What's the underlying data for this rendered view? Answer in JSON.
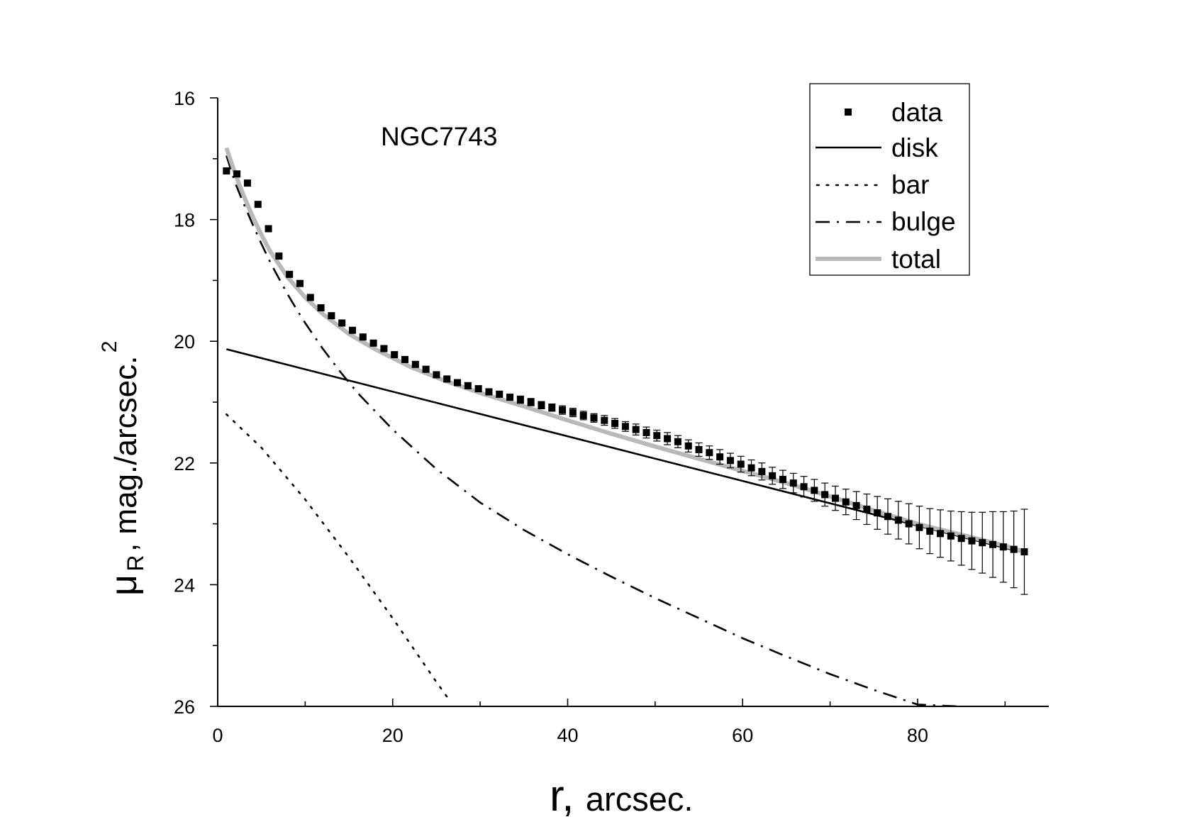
{
  "chart_data": {
    "type": "scatter",
    "title": "",
    "annotation": "NGC7743",
    "xlabel": {
      "main": "r,",
      "rest": "arcsec."
    },
    "ylabel": {
      "mu": "μ",
      "sub": "R",
      "text": ", mag./arcsec.",
      "sup": "2"
    },
    "xlim": [
      0,
      95
    ],
    "ylim": [
      26,
      16
    ],
    "y_inverted": true,
    "x_ticks": [
      0,
      20,
      40,
      60,
      80
    ],
    "y_ticks": [
      16,
      18,
      20,
      22,
      24,
      26
    ],
    "x_minor_step": 10,
    "y_minor_step": 1,
    "grid": false,
    "legend_position": "top-right",
    "legend": [
      {
        "name": "data",
        "style": "square-marker"
      },
      {
        "name": "disk",
        "style": "solid"
      },
      {
        "name": "bar",
        "style": "dotted"
      },
      {
        "name": "bulge",
        "style": "dash-dot"
      },
      {
        "name": "total",
        "style": "solid-gray"
      }
    ],
    "colors": {
      "data": "#000000",
      "disk": "#000000",
      "bar": "#000000",
      "bulge": "#000000",
      "total": "#b9b9b9"
    },
    "series": [
      {
        "name": "data",
        "style": "markers-with-errorbars",
        "x": [
          1.0,
          2.2,
          3.4,
          4.6,
          5.8,
          7.0,
          8.2,
          9.4,
          10.6,
          11.8,
          13.0,
          14.2,
          15.4,
          16.6,
          17.8,
          19.0,
          20.2,
          21.4,
          22.6,
          23.8,
          25.0,
          26.2,
          27.4,
          28.6,
          29.8,
          31.0,
          32.2,
          33.4,
          34.6,
          35.8,
          37.0,
          38.2,
          39.4,
          40.6,
          41.8,
          43.0,
          44.2,
          45.4,
          46.6,
          47.8,
          49.0,
          50.2,
          51.4,
          52.6,
          53.8,
          55.0,
          56.2,
          57.4,
          58.6,
          59.8,
          61.0,
          62.2,
          63.4,
          64.6,
          65.8,
          67.0,
          68.2,
          69.4,
          70.6,
          71.8,
          73.0,
          74.2,
          75.4,
          76.6,
          77.8,
          79.0,
          80.2,
          81.4,
          82.6,
          83.8,
          85.0,
          86.2,
          87.4,
          88.6,
          89.8,
          91.0,
          92.2
        ],
        "y": [
          17.2,
          17.25,
          17.4,
          17.75,
          18.15,
          18.6,
          18.9,
          19.05,
          19.28,
          19.45,
          19.58,
          19.7,
          19.82,
          19.93,
          20.03,
          20.12,
          20.22,
          20.3,
          20.38,
          20.46,
          20.55,
          20.62,
          20.68,
          20.73,
          20.78,
          20.83,
          20.87,
          20.92,
          20.96,
          21.0,
          21.05,
          21.09,
          21.13,
          21.17,
          21.22,
          21.26,
          21.3,
          21.35,
          21.4,
          21.45,
          21.5,
          21.55,
          21.6,
          21.65,
          21.72,
          21.78,
          21.83,
          21.9,
          21.96,
          22.02,
          22.08,
          22.14,
          22.21,
          22.27,
          22.33,
          22.39,
          22.45,
          22.52,
          22.58,
          22.64,
          22.7,
          22.76,
          22.82,
          22.88,
          22.94,
          23.0,
          23.06,
          23.12,
          23.16,
          23.2,
          23.24,
          23.28,
          23.31,
          23.34,
          23.38,
          23.42,
          23.46
        ],
        "yerr": [
          0.01,
          0.01,
          0.01,
          0.01,
          0.01,
          0.01,
          0.01,
          0.01,
          0.01,
          0.02,
          0.02,
          0.02,
          0.02,
          0.02,
          0.03,
          0.03,
          0.03,
          0.03,
          0.04,
          0.04,
          0.04,
          0.04,
          0.04,
          0.05,
          0.05,
          0.05,
          0.05,
          0.05,
          0.06,
          0.06,
          0.06,
          0.06,
          0.07,
          0.07,
          0.07,
          0.07,
          0.08,
          0.08,
          0.08,
          0.09,
          0.09,
          0.09,
          0.1,
          0.1,
          0.1,
          0.11,
          0.11,
          0.12,
          0.12,
          0.13,
          0.13,
          0.14,
          0.14,
          0.15,
          0.16,
          0.17,
          0.18,
          0.19,
          0.2,
          0.21,
          0.23,
          0.25,
          0.27,
          0.29,
          0.31,
          0.33,
          0.35,
          0.37,
          0.39,
          0.41,
          0.44,
          0.47,
          0.5,
          0.54,
          0.58,
          0.63,
          0.7
        ]
      },
      {
        "name": "disk",
        "style": "solid",
        "x": [
          1.0,
          92.0
        ],
        "y": [
          20.13,
          23.47
        ]
      },
      {
        "name": "bar",
        "style": "dotted",
        "x": [
          1.0,
          5.0,
          10.0,
          15.0,
          20.0,
          25.0,
          26.5
        ],
        "y": [
          21.2,
          21.75,
          22.6,
          23.55,
          24.55,
          25.6,
          25.9
        ]
      },
      {
        "name": "bulge",
        "style": "dash-dot",
        "x": [
          1.0,
          2.0,
          3.0,
          4.0,
          5.0,
          6.0,
          7.0,
          8.0,
          9.0,
          10.0,
          12.0,
          14.0,
          16.0,
          20.0,
          25.0,
          30.0,
          35.0,
          40.0,
          45.0,
          50.0,
          55.0,
          60.0,
          65.0,
          70.0,
          75.0,
          80.0,
          84.5
        ],
        "y": [
          16.95,
          17.4,
          17.75,
          18.08,
          18.4,
          18.7,
          18.97,
          19.23,
          19.47,
          19.7,
          20.12,
          20.5,
          20.85,
          21.45,
          22.1,
          22.65,
          23.1,
          23.5,
          23.87,
          24.22,
          24.55,
          24.88,
          25.18,
          25.47,
          25.73,
          25.97,
          26.0
        ]
      },
      {
        "name": "total",
        "style": "solid-gray",
        "x": [
          1.0,
          2.0,
          3.0,
          4.0,
          5.0,
          6.0,
          8.0,
          10.0,
          12.0,
          15.0,
          18.0,
          22.0,
          26.0,
          30.0,
          35.0,
          40.0,
          45.0,
          50.0,
          55.0,
          60.0,
          65.0,
          70.0,
          75.0,
          80.0,
          85.0,
          90.0,
          92.0
        ],
        "y": [
          16.82,
          17.25,
          17.62,
          17.95,
          18.25,
          18.52,
          18.95,
          19.28,
          19.55,
          19.88,
          20.13,
          20.42,
          20.65,
          20.85,
          21.07,
          21.3,
          21.52,
          21.73,
          21.93,
          22.13,
          22.33,
          22.55,
          22.78,
          23.0,
          23.18,
          23.36,
          23.45
        ]
      }
    ]
  }
}
